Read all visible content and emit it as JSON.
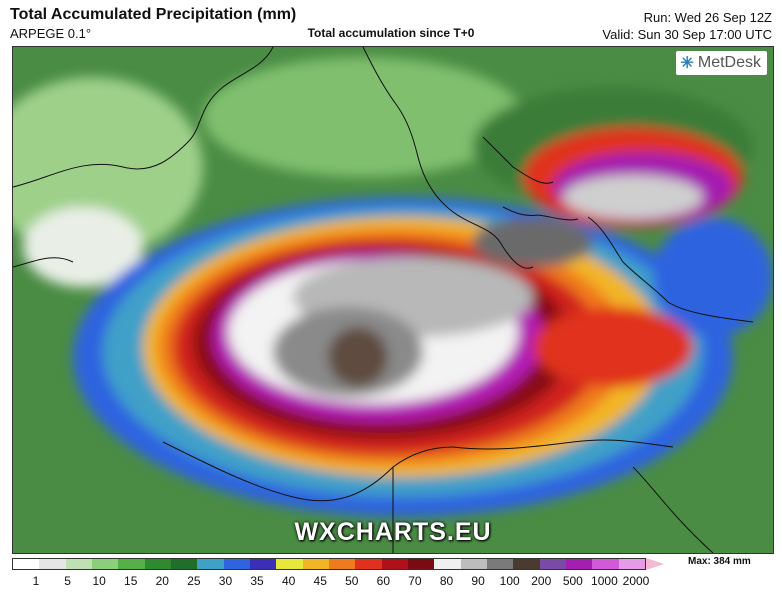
{
  "header": {
    "title": "Total Accumulated Precipitation (mm)",
    "model": "ARPEGE 0.1°",
    "subtitle": "Total accumulation since T+0",
    "run": "Run: Wed 26 Sep 12Z",
    "valid": "Valid: Sun 30 Sep 17:00 UTC"
  },
  "logo": {
    "text": "MetDesk",
    "icon": "metdesk-star-icon"
  },
  "watermark": "WXCHARTS.EU",
  "legend": {
    "max_label": "Max: 384 mm",
    "ticks": [
      "1",
      "5",
      "10",
      "15",
      "20",
      "25",
      "30",
      "35",
      "40",
      "45",
      "50",
      "60",
      "70",
      "80",
      "90",
      "100",
      "200",
      "500",
      "1000",
      "2000"
    ],
    "colors": [
      "#ffffff",
      "#e6e6e6",
      "#bfe0b3",
      "#8ccf7a",
      "#55b048",
      "#2f8a2f",
      "#1f6e2a",
      "#3fa0c8",
      "#2f64e0",
      "#3b2fb8",
      "#e8e83a",
      "#f2b526",
      "#f07a1e",
      "#e0301e",
      "#b0101a",
      "#7a0a14",
      "#f0f0f0",
      "#bdbdbd",
      "#7a7a7a",
      "#4a3a30",
      "#7a4aa8",
      "#a41fb0",
      "#d05ad8",
      "#e59be8"
    ]
  },
  "colors": {
    "sea_green": "#4a8c44",
    "land_white": "#f2f2f2"
  }
}
